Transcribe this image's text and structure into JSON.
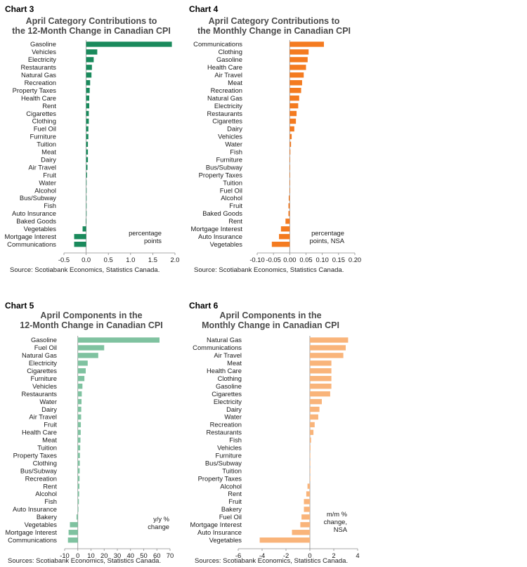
{
  "charts": [
    {
      "chart_label": "Chart 3",
      "title_line1": "April Category Contributions to",
      "title_line2": "the 12-Month Change in Canadian CPI",
      "unit_line1": "percentage",
      "unit_line2": "points",
      "source": "Source: Scotiabank Economics, Statistics Canada.",
      "color": "#1a8a5c",
      "chart_data": {
        "type": "bar",
        "orientation": "horizontal",
        "categories": [
          "Gasoline",
          "Vehicles",
          "Electricity",
          "Restaurants",
          "Natural Gas",
          "Recreation",
          "Property Taxes",
          "Health Care",
          "Rent",
          "Cigarettes",
          "Clothing",
          "Fuel Oil",
          "Furniture",
          "Tuition",
          "Meat",
          "Dairy",
          "Air Travel",
          "Fruit",
          "Water",
          "Alcohol",
          "Bus/Subway",
          "Fish",
          "Auto Insurance",
          "Baked Goods",
          "Vegetables",
          "Mortgage Interest",
          "Communications"
        ],
        "values": [
          1.93,
          0.25,
          0.17,
          0.13,
          0.12,
          0.09,
          0.08,
          0.07,
          0.07,
          0.06,
          0.06,
          0.05,
          0.05,
          0.04,
          0.04,
          0.04,
          0.03,
          0.02,
          0.01,
          0.01,
          0.01,
          0.01,
          0.01,
          -0.01,
          -0.08,
          -0.27,
          -0.27
        ],
        "xlim": [
          -0.5,
          2.0
        ],
        "ticks": [
          -0.5,
          0.0,
          0.5,
          1.0,
          1.5,
          2.0
        ],
        "tick_labels": [
          "-0.5",
          "0.0",
          "0.5",
          "1.0",
          "1.5",
          "2.0"
        ]
      }
    },
    {
      "chart_label": "Chart 4",
      "title_line1": "April Category Contributions to",
      "title_line2": "the Monthly Change in Canadian CPI",
      "unit_line1": "percentage",
      "unit_line2": "points, NSA",
      "source": "Source: Scotiabank Economics, Statistics Canada.",
      "color": "#f47b20",
      "chart_data": {
        "type": "bar",
        "orientation": "horizontal",
        "categories": [
          "Communications",
          "Clothing",
          "Gasoline",
          "Health Care",
          "Air Travel",
          "Meat",
          "Recreation",
          "Natural Gas",
          "Electricity",
          "Restaurants",
          "Cigarettes",
          "Dairy",
          "Vehicles",
          "Water",
          "Fish",
          "Furniture",
          "Bus/Subway",
          "Property Taxes",
          "Tuition",
          "Fuel Oil",
          "Alcohol",
          "Fruit",
          "Baked Goods",
          "Rent",
          "Mortgage Interest",
          "Auto Insurance",
          "Vegetables"
        ],
        "values": [
          0.105,
          0.058,
          0.055,
          0.05,
          0.043,
          0.038,
          0.035,
          0.029,
          0.026,
          0.021,
          0.019,
          0.014,
          0.006,
          0.004,
          0.002,
          0.001,
          0.001,
          0.0,
          0.0,
          0.0,
          -0.003,
          -0.004,
          -0.004,
          -0.013,
          -0.027,
          -0.033,
          -0.055
        ],
        "xlim": [
          -0.1,
          0.2
        ],
        "ticks": [
          -0.1,
          -0.05,
          0.0,
          0.05,
          0.1,
          0.15,
          0.2
        ],
        "tick_labels": [
          "-0.10",
          "-0.05",
          "0.00",
          "0.05",
          "0.10",
          "0.15",
          "0.20"
        ]
      }
    },
    {
      "chart_label": "Chart 5",
      "title_line1": "April Components in the",
      "title_line2": "12-Month Change in Canadian CPI",
      "unit_line1": "y/y %",
      "unit_line2": "change",
      "source": "Sources: Scotiabank Economics, Statistics Canada.",
      "color": "#7fc2a0",
      "chart_data": {
        "type": "bar",
        "orientation": "horizontal",
        "categories": [
          "Gasoline",
          "Fuel Oil",
          "Natural Gas",
          "Electricity",
          "Cigarettes",
          "Furniture",
          "Vehicles",
          "Restaurants",
          "Water",
          "Dairy",
          "Air Travel",
          "Fruit",
          "Health Care",
          "Meat",
          "Tuition",
          "Property Taxes",
          "Clothing",
          "Bus/Subway",
          "Recreation",
          "Rent",
          "Alcohol",
          "Fish",
          "Auto Insurance",
          "Bakery",
          "Vegetables",
          "Mortgage Interest",
          "Communications"
        ],
        "values": [
          62.0,
          20.0,
          15.5,
          7.5,
          6.0,
          5.0,
          3.5,
          3.0,
          2.8,
          2.6,
          2.5,
          2.3,
          2.2,
          2.0,
          1.8,
          1.6,
          1.5,
          1.4,
          1.3,
          1.2,
          1.0,
          0.8,
          0.5,
          -1.0,
          -6.0,
          -7.0,
          -7.5
        ],
        "xlim": [
          -10,
          70
        ],
        "ticks": [
          -10,
          0,
          10,
          20,
          30,
          40,
          50,
          60,
          70
        ],
        "tick_labels": [
          "-10",
          "0",
          "10",
          "20",
          "30",
          "40",
          "50",
          "60",
          "70"
        ]
      }
    },
    {
      "chart_label": "Chart 6",
      "title_line1": "April Components in the",
      "title_line2": "Monthly Change in Canadian CPI",
      "unit_line1": "m/m %",
      "unit_line2": "change,",
      "unit_line3": "NSA",
      "source": "Sources: Scotiabank Economics, Statistics Canada.",
      "color": "#f9b47a",
      "chart_data": {
        "type": "bar",
        "orientation": "horizontal",
        "categories": [
          "Natural Gas",
          "Communications",
          "Air Travel",
          "Meat",
          "Health Care",
          "Clothing",
          "Gasoline",
          "Cigarettes",
          "Electricity",
          "Dairy",
          "Water",
          "Recreation",
          "Restaurants",
          "Fish",
          "Vehicles",
          "Furniture",
          "Bus/Subway",
          "Tuition",
          "Property Taxes",
          "Alcohol",
          "Rent",
          "Fruit",
          "Bakery",
          "Fuel Oil",
          "Mortgage Interest",
          "Auto Insurance",
          "Vegetables"
        ],
        "values": [
          3.2,
          3.0,
          2.8,
          1.8,
          1.8,
          1.8,
          1.8,
          1.7,
          1.0,
          0.8,
          0.7,
          0.4,
          0.3,
          0.1,
          0.05,
          0.0,
          0.0,
          0.0,
          0.0,
          -0.2,
          -0.3,
          -0.5,
          -0.5,
          -0.7,
          -0.8,
          -1.5,
          -4.2
        ],
        "xlim": [
          -6,
          4
        ],
        "ticks": [
          -6,
          -4,
          -2,
          0,
          2,
          4
        ],
        "tick_labels": [
          "-6",
          "-4",
          "-2",
          "0",
          "2",
          "4"
        ]
      }
    }
  ]
}
